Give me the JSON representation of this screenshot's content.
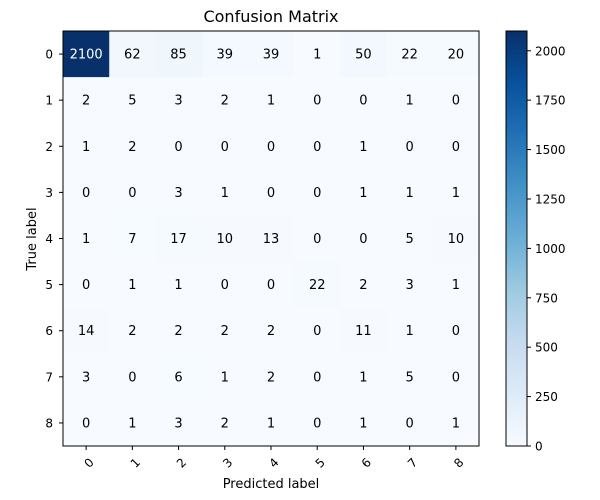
{
  "chart_data": {
    "type": "heatmap",
    "title": "Confusion Matrix",
    "xlabel": "Predicted label",
    "ylabel": "True label",
    "x_categories": [
      "0",
      "1",
      "2",
      "3",
      "4",
      "5",
      "6",
      "7",
      "8"
    ],
    "y_categories": [
      "0",
      "1",
      "2",
      "3",
      "4",
      "5",
      "6",
      "7",
      "8"
    ],
    "values": [
      [
        2100,
        62,
        85,
        39,
        39,
        1,
        50,
        22,
        20
      ],
      [
        2,
        5,
        3,
        2,
        1,
        0,
        0,
        1,
        0
      ],
      [
        1,
        2,
        0,
        0,
        0,
        0,
        1,
        0,
        0
      ],
      [
        0,
        0,
        3,
        1,
        0,
        0,
        1,
        1,
        1
      ],
      [
        1,
        7,
        17,
        10,
        13,
        0,
        0,
        5,
        10
      ],
      [
        0,
        1,
        1,
        0,
        0,
        22,
        2,
        3,
        1
      ],
      [
        14,
        2,
        2,
        2,
        2,
        0,
        11,
        1,
        0
      ],
      [
        3,
        0,
        6,
        1,
        2,
        0,
        1,
        5,
        0
      ],
      [
        0,
        1,
        3,
        2,
        1,
        0,
        1,
        0,
        1
      ]
    ],
    "colormap": "Blues",
    "colorbar": {
      "range": [
        0,
        2100
      ],
      "ticks": [
        0,
        250,
        500,
        750,
        1000,
        1250,
        1500,
        1750,
        2000
      ]
    },
    "x_tick_rotation_deg": 45,
    "grid": false
  }
}
